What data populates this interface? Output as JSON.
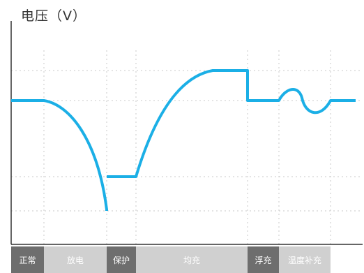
{
  "y_axis_label": "电压（V）",
  "colors": {
    "curve": "#1BAFE6",
    "axis": "#333333",
    "grid": "#C8C8C8",
    "phase_dark": "#6E6E6E",
    "phase_light": "#D0D0D0"
  },
  "phases": [
    {
      "label": "正常",
      "tone": "dark"
    },
    {
      "label": "放电",
      "tone": "light"
    },
    {
      "label": "保护",
      "tone": "dark"
    },
    {
      "label": "均充",
      "tone": "light"
    },
    {
      "label": "浮充",
      "tone": "dark"
    },
    {
      "label": "温度补充",
      "tone": "light"
    }
  ]
}
